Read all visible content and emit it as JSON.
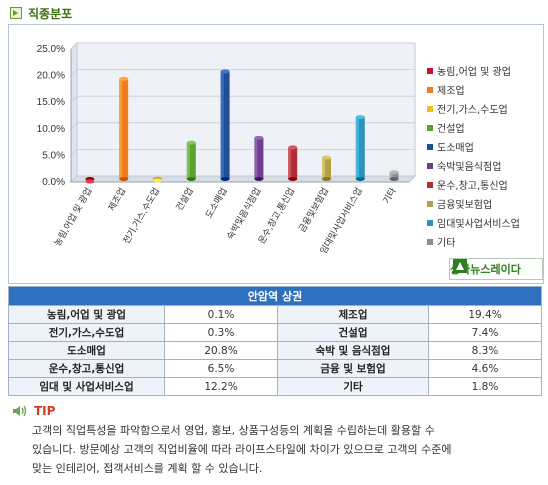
{
  "section_title": "직종분포",
  "chart_data": {
    "type": "bar",
    "categories": [
      "농림,어업 및 광업",
      "제조업",
      "전기,가스,수도업",
      "건설업",
      "도소매업",
      "숙박및음식점업",
      "운수,창고,통신업",
      "금융및보험업",
      "임대및사업서비스업",
      "기타"
    ],
    "values": [
      0.1,
      19.4,
      0.3,
      7.4,
      20.8,
      8.3,
      6.5,
      4.6,
      12.2,
      1.8
    ],
    "colors": [
      "#c8102e",
      "#f07d1a",
      "#e8c320",
      "#5aa12f",
      "#1f4f9a",
      "#6b3f8c",
      "#b02f35",
      "#b3a04d",
      "#2a93ba",
      "#8c8c8c"
    ],
    "yticks": [
      "0.0%",
      "5.0%",
      "10.0%",
      "15.0%",
      "20.0%",
      "25.0%"
    ],
    "ylim": [
      0,
      25
    ],
    "grid": true,
    "legend": "right"
  },
  "brand": {
    "name": "상가뉴스레이다"
  },
  "table": {
    "title": "안암역 상권",
    "rows": [
      [
        {
          "name": "농림,어업 및 광업",
          "value": "0.1%"
        },
        {
          "name": "제조업",
          "value": "19.4%"
        }
      ],
      [
        {
          "name": "전기,가스,수도업",
          "value": "0.3%"
        },
        {
          "name": "건설업",
          "value": "7.4%"
        }
      ],
      [
        {
          "name": "도소매업",
          "value": "20.8%"
        },
        {
          "name": "숙박 및 음식점업",
          "value": "8.3%"
        }
      ],
      [
        {
          "name": "운수,창고,통신업",
          "value": "6.5%"
        },
        {
          "name": "금융 및 보험업",
          "value": "4.6%"
        }
      ],
      [
        {
          "name": "임대 및 사업서비스업",
          "value": "12.2%"
        },
        {
          "name": "기타",
          "value": "1.8%"
        }
      ]
    ]
  },
  "tip": {
    "title": "TIP",
    "icon": "speaker-icon",
    "lines": [
      "고객의 직업특성을 파악함으로서 영업, 홍보, 상품구성등의 계획을 수립하는데 활용할 수",
      "있습니다. 방문예상 고객의 직업비율에 따라 라이프스타일에 차이가 있으므로 고객의 수준에",
      "맞는 인테리어, 접객서비스를 계획 할 수 있습니다."
    ]
  }
}
